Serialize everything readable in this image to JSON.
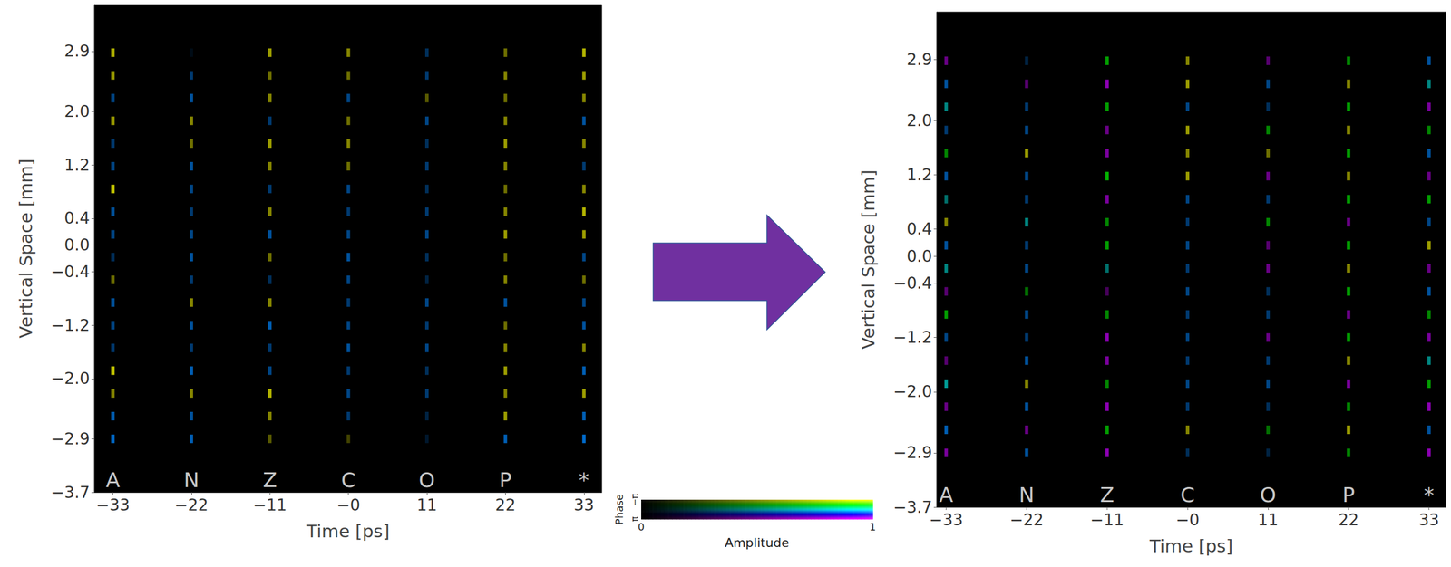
{
  "chart_data": [
    {
      "type": "scatter",
      "xlabel": "Time [ps]",
      "ylabel": "Vertical Space [mm]",
      "xlim": [
        -35.6,
        35.5
      ],
      "xticks": [
        {
          "value": -33,
          "label": "−33"
        },
        {
          "value": -22,
          "label": "−22"
        },
        {
          "value": -11,
          "label": "−11"
        },
        {
          "value": 0,
          "label": "−0"
        },
        11,
        22,
        33
      ],
      "ylim": [
        -3.7,
        3.6
      ],
      "yticks": [
        2.9,
        {
          "value": 2.0,
          "label": "2.0"
        },
        1.2,
        0.4,
        {
          "value": 0.0,
          "label": "0.0"
        },
        {
          "value": -0.4,
          "label": "−0.4"
        },
        {
          "value": -1.2,
          "label": "−1.2"
        },
        {
          "value": -2.0,
          "label": "−2.0"
        },
        {
          "value": -2.9,
          "label": "−2.9"
        },
        {
          "value": -3.7,
          "label": "−3.7"
        }
      ],
      "y": [
        -2.9,
        -2.56,
        -2.22,
        -1.88,
        -1.54,
        -1.2,
        -0.86,
        -0.52,
        -0.18,
        0.16,
        0.5,
        0.84,
        1.18,
        1.52,
        1.86,
        2.2,
        2.54,
        2.88
      ],
      "series": [
        {
          "name": "A",
          "x": -33,
          "amplitude": [
            0.9,
            0.8,
            0.6,
            0.9,
            0.5,
            0.6,
            0.7,
            0.5,
            0.4,
            0.6,
            0.7,
            0.9,
            0.6,
            0.5,
            0.7,
            0.6,
            0.7,
            0.8
          ],
          "phase": [
            0.8,
            0.8,
            -3,
            -3,
            0.8,
            0.8,
            0.8,
            -3,
            0.8,
            0.8,
            0.8,
            -3,
            0.8,
            0.8,
            -3,
            0.8,
            -3,
            -3
          ]
        },
        {
          "name": "N",
          "x": -22,
          "amplitude": [
            0.8,
            0.7,
            0.6,
            0.8,
            0.5,
            0.7,
            0.6,
            0.5,
            0.7,
            0.6,
            0.5,
            0.6,
            0.7,
            0.5,
            0.6,
            0.7,
            0.5,
            0.1
          ],
          "phase": [
            0.8,
            0.8,
            -3,
            0.8,
            0.8,
            0.8,
            -3,
            0.8,
            0.8,
            0.8,
            0.8,
            0.8,
            0.8,
            -3,
            -3,
            0.8,
            0.8,
            0.8
          ]
        },
        {
          "name": "Z",
          "x": -11,
          "amplitude": [
            0.4,
            0.6,
            0.8,
            0.6,
            0.5,
            0.8,
            0.6,
            0.4,
            0.5,
            0.7,
            0.6,
            0.5,
            0.6,
            0.7,
            0.5,
            0.6,
            0.5,
            0.7
          ],
          "phase": [
            -3,
            -3,
            -3,
            0.8,
            0.8,
            0.8,
            -3,
            0.8,
            -3,
            0.8,
            -3,
            0.8,
            -3,
            -3,
            0.8,
            -3,
            -3,
            -3
          ]
        },
        {
          "name": "C",
          "x": 0,
          "amplitude": [
            0.3,
            0.5,
            0.6,
            0.5,
            0.7,
            0.6,
            0.5,
            0.6,
            0.7,
            0.6,
            0.5,
            0.6,
            0.5,
            0.6,
            0.5,
            0.6,
            0.5,
            0.6
          ],
          "phase": [
            -3,
            0.8,
            0.8,
            0.8,
            0.8,
            0.8,
            0.8,
            0.8,
            0.8,
            0.8,
            0.8,
            0.8,
            -3,
            -3,
            -3,
            0.8,
            -3,
            -3
          ]
        },
        {
          "name": "O",
          "x": 11,
          "amplitude": [
            0.2,
            0.3,
            0.5,
            0.4,
            0.6,
            0.5,
            0.6,
            0.3,
            0.4,
            0.6,
            0.5,
            0.4,
            0.5,
            0.4,
            0.6,
            0.4,
            0.5,
            0.4
          ],
          "phase": [
            0.8,
            0.8,
            0.8,
            0.8,
            0.8,
            0.8,
            0.8,
            0.8,
            0.8,
            0.8,
            0.8,
            0.8,
            0.8,
            0.8,
            0.8,
            -3,
            0.8,
            0.8
          ]
        },
        {
          "name": "P",
          "x": 22,
          "amplitude": [
            0.8,
            0.7,
            0.6,
            0.7,
            0.6,
            0.5,
            0.7,
            0.6,
            0.5,
            0.7,
            0.6,
            0.5,
            0.6,
            0.7,
            0.6,
            0.5,
            0.6,
            0.5
          ],
          "phase": [
            0.8,
            -3,
            -3,
            -3,
            -3,
            -3,
            0.8,
            -3,
            -3,
            -3,
            -3,
            -3,
            -3,
            -3,
            -3,
            -3,
            -3,
            -3
          ]
        },
        {
          "name": "*",
          "x": 33,
          "amplitude": [
            0.9,
            0.8,
            0.7,
            0.8,
            0.6,
            0.7,
            0.6,
            0.5,
            0.6,
            0.7,
            0.8,
            0.6,
            0.5,
            0.6,
            0.7,
            0.6,
            0.7,
            0.8
          ],
          "phase": [
            0.8,
            0.8,
            -3,
            0.8,
            -3,
            0.8,
            0.8,
            -3,
            0.8,
            -3,
            -3,
            -3,
            0.8,
            -3,
            0.8,
            -3,
            -3,
            -3
          ]
        }
      ]
    },
    {
      "type": "scatter",
      "xlabel": "Time [ps]",
      "ylabel": "Vertical Space [mm]",
      "xlim": [
        -34.3,
        35.3
      ],
      "xticks": [
        {
          "value": -33,
          "label": "−33"
        },
        {
          "value": -22,
          "label": "−22"
        },
        {
          "value": -11,
          "label": "−11"
        },
        {
          "value": 0,
          "label": "−0"
        },
        11,
        22,
        33
      ],
      "ylim": [
        -3.7,
        3.6
      ],
      "yticks": [
        2.9,
        {
          "value": 2.0,
          "label": "2.0"
        },
        1.2,
        0.4,
        {
          "value": 0.0,
          "label": "0.0"
        },
        {
          "value": -0.4,
          "label": "−0.4"
        },
        {
          "value": -1.2,
          "label": "−1.2"
        },
        {
          "value": -2.0,
          "label": "−2.0"
        },
        {
          "value": -2.9,
          "label": "−2.9"
        },
        {
          "value": -3.7,
          "label": "−3.7"
        }
      ],
      "y": [
        -2.9,
        -2.56,
        -2.22,
        -1.88,
        -1.54,
        -1.2,
        -0.86,
        -0.52,
        -0.18,
        0.16,
        0.5,
        0.84,
        1.18,
        1.52,
        1.86,
        2.2,
        2.54,
        2.88
      ],
      "series": [
        {
          "name": "A",
          "x": -33,
          "amplitude": [
            0.7,
            0.8,
            0.6,
            0.7,
            0.5,
            0.6,
            0.7,
            0.5,
            0.6,
            0.7,
            0.6,
            0.5,
            0.7,
            0.6,
            0.5,
            0.6,
            0.7,
            0.6
          ],
          "phase": [
            2.8,
            0.8,
            2.8,
            0,
            2.8,
            0.8,
            -1.5,
            2.8,
            0,
            0.8,
            -3,
            0,
            0.8,
            -1.5,
            0.8,
            0,
            0.8,
            2.8
          ]
        },
        {
          "name": "N",
          "x": -22,
          "amplitude": [
            0.7,
            0.6,
            0.7,
            0.6,
            0.7,
            0.5,
            0.6,
            0.5,
            0.6,
            0.5,
            0.6,
            0.5,
            0.6,
            0.7,
            0.6,
            0.5,
            0.5,
            0.3
          ],
          "phase": [
            0.8,
            2.8,
            0.8,
            -3,
            0.8,
            0.8,
            0.8,
            -1.5,
            0.8,
            0.8,
            0,
            0.8,
            0.8,
            -3,
            0.8,
            0.8,
            2.8,
            0.8
          ]
        },
        {
          "name": "Z",
          "x": -11,
          "amplitude": [
            0.8,
            0.7,
            0.8,
            0.6,
            0.7,
            0.8,
            0.6,
            0.4,
            0.5,
            0.7,
            0.6,
            0.7,
            0.8,
            0.7,
            0.6,
            0.7,
            0.8,
            0.7
          ],
          "phase": [
            2.8,
            -1.5,
            2.8,
            -1.5,
            2.8,
            2.8,
            -1.5,
            2.8,
            0,
            -1.5,
            -1.5,
            2.8,
            -1.5,
            2.8,
            2.8,
            -1.5,
            2.8,
            -1.5
          ]
        },
        {
          "name": "C",
          "x": 0,
          "amplitude": [
            0.4,
            0.6,
            0.5,
            0.6,
            0.5,
            0.6,
            0.5,
            0.6,
            0.5,
            0.6,
            0.5,
            0.6,
            0.7,
            0.6,
            0.7,
            0.6,
            0.7,
            0.6
          ],
          "phase": [
            0.8,
            -3,
            0.8,
            0.8,
            0.8,
            0.8,
            0.8,
            0.8,
            0.8,
            0.8,
            0.8,
            0.8,
            -3,
            -3,
            -3,
            0.8,
            -3,
            -3
          ]
        },
        {
          "name": "O",
          "x": 11,
          "amplitude": [
            0.3,
            0.5,
            0.4,
            0.6,
            0.5,
            0.6,
            0.5,
            0.4,
            0.6,
            0.5,
            0.6,
            0.5,
            0.6,
            0.5,
            0.6,
            0.4,
            0.6,
            0.5
          ],
          "phase": [
            0.8,
            -1.5,
            0.8,
            0.8,
            0.8,
            2.8,
            0.8,
            0.8,
            2.8,
            2.8,
            -1.5,
            0.8,
            2.8,
            -3,
            -1.5,
            0.8,
            0.8,
            2.8
          ]
        },
        {
          "name": "P",
          "x": 22,
          "amplitude": [
            0.6,
            0.7,
            0.6,
            0.7,
            0.6,
            0.7,
            0.6,
            0.7,
            0.6,
            0.7,
            0.6,
            0.7,
            0.6,
            0.7,
            0.6,
            0.7,
            0.6,
            0.6
          ],
          "phase": [
            -1.5,
            -3,
            -1.5,
            2.8,
            -3,
            -1.5,
            2.8,
            -1.5,
            -3,
            -1.5,
            2.8,
            -1.5,
            -3,
            -1.5,
            -3,
            -1.5,
            -3,
            -1.5
          ]
        },
        {
          "name": "*",
          "x": 33,
          "amplitude": [
            0.8,
            0.7,
            0.8,
            0.7,
            0.6,
            0.7,
            0.6,
            0.7,
            0.6,
            0.7,
            0.6,
            0.7,
            0.6,
            0.7,
            0.6,
            0.7,
            0.6,
            0.7
          ],
          "phase": [
            2.8,
            0.8,
            2.8,
            -1.5,
            0,
            2.8,
            -1.5,
            0.8,
            2.8,
            -3,
            0.8,
            -1.5,
            2.8,
            0.8,
            -1.5,
            2.8,
            0,
            0.8
          ]
        }
      ]
    },
    {
      "type": "colorbar",
      "xlabel": "Amplitude",
      "ylabel": "Phase",
      "xlim": [
        0,
        1
      ],
      "xticks": [
        0,
        1
      ],
      "ylim": [
        -3.1416,
        3.1416
      ],
      "yticks": [
        {
          "value": -3.1416,
          "label": "−π"
        },
        {
          "value": 3.1416,
          "label": "π"
        }
      ]
    }
  ]
}
